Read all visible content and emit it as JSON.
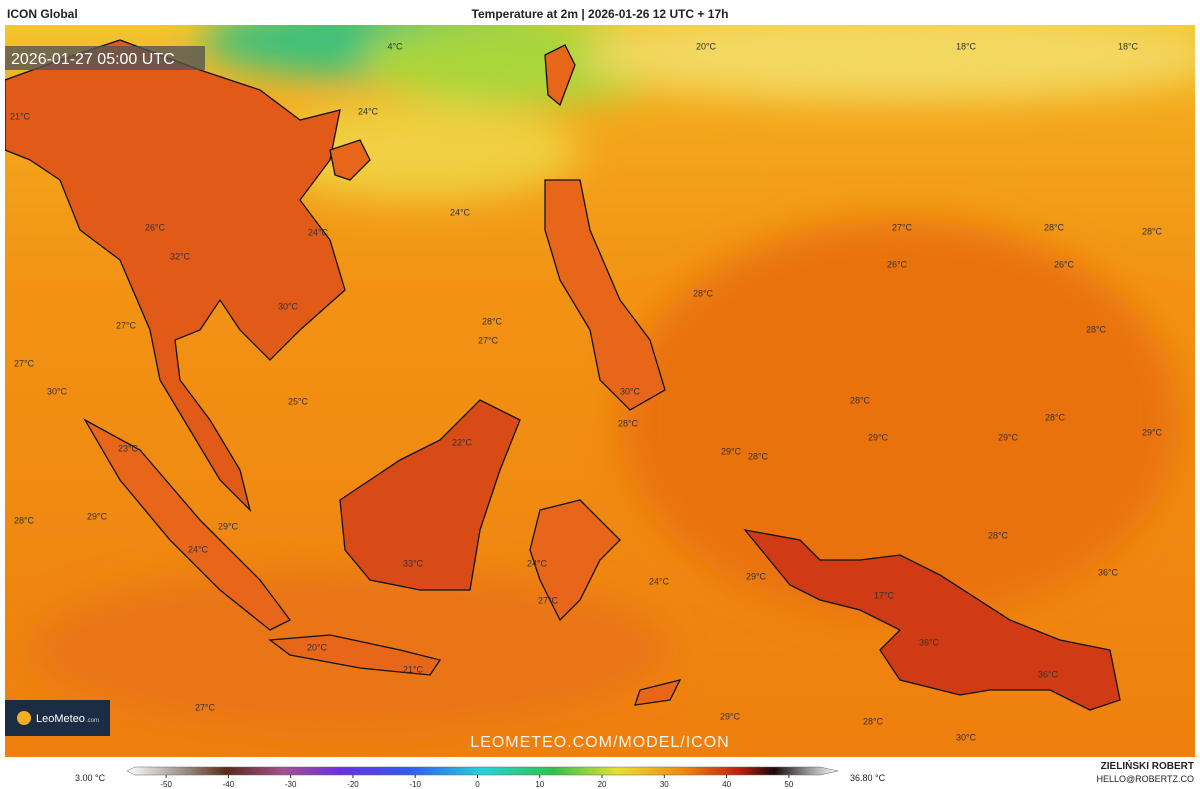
{
  "header": {
    "model": "ICON Global",
    "title": "Temperature at 2m | 2026-01-26 12 UTC + 17h",
    "valid_time": "2026-01-27 05:00 UTC"
  },
  "map_labels": [
    "4°C",
    "20°C",
    "18°C",
    "18°C",
    "21°C",
    "24°C",
    "24°C",
    "27°C",
    "28°C",
    "28°C",
    "26°C",
    "24°C",
    "32°C",
    "26°C",
    "26°C",
    "28°C",
    "30°C",
    "27°C",
    "28°C",
    "27°C",
    "28°C",
    "27°C",
    "30°C",
    "25°C",
    "28°C",
    "28°C",
    "30°C",
    "28°C",
    "23°C",
    "22°C",
    "29°C",
    "29°C",
    "29°C",
    "29°C",
    "28°C",
    "28°C",
    "29°C",
    "29°C",
    "28°C",
    "24°C",
    "33°C",
    "24°C",
    "29°C",
    "36°C",
    "24°C",
    "17°C",
    "27°C",
    "36°C",
    "20°C",
    "21°C",
    "36°C",
    "27°C",
    "29°C",
    "28°C",
    "30°C"
  ],
  "logo": {
    "name": "LeoMeteo",
    "suffix": ".com"
  },
  "watermark": "LEOMETEO.COM/MODEL/ICON",
  "footer": {
    "author": "ZIELIŃSKI ROBERT",
    "contact": "HELLO@ROBERTZ.CO"
  },
  "colorbar": {
    "min_label": "3.00 °C",
    "max_label": "36.80 °C",
    "lim": [
      -55,
      55
    ],
    "ticks": [
      -50,
      -40,
      -30,
      -20,
      -10,
      0,
      10,
      20,
      30,
      40,
      50
    ]
  }
}
